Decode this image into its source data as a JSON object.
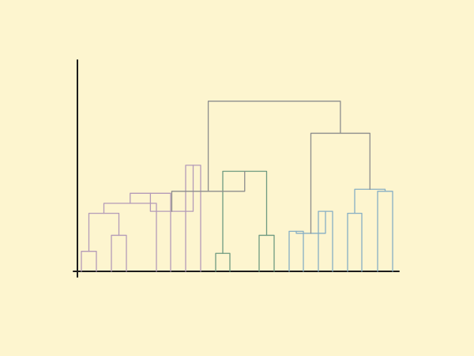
{
  "diagram": {
    "type": "dendrogram",
    "background": "#fdf5cf",
    "axis_color": "#1c1c1c",
    "colors": {
      "purple_cluster": "#b49bb8",
      "green_cluster": "#6f9a80",
      "blue_cluster": "#86aec4",
      "upper_links": "#8d8d8d"
    },
    "leaf_count": 20,
    "merge_heights": [
      0.1,
      0.18,
      0.09,
      0.18,
      0.29,
      0.34,
      0.39,
      0.53,
      0.3,
      0.2,
      0.3,
      0.19,
      0.29,
      0.4,
      0.5,
      0.41,
      0.4,
      0.69,
      0.85,
      0.96
    ]
  }
}
